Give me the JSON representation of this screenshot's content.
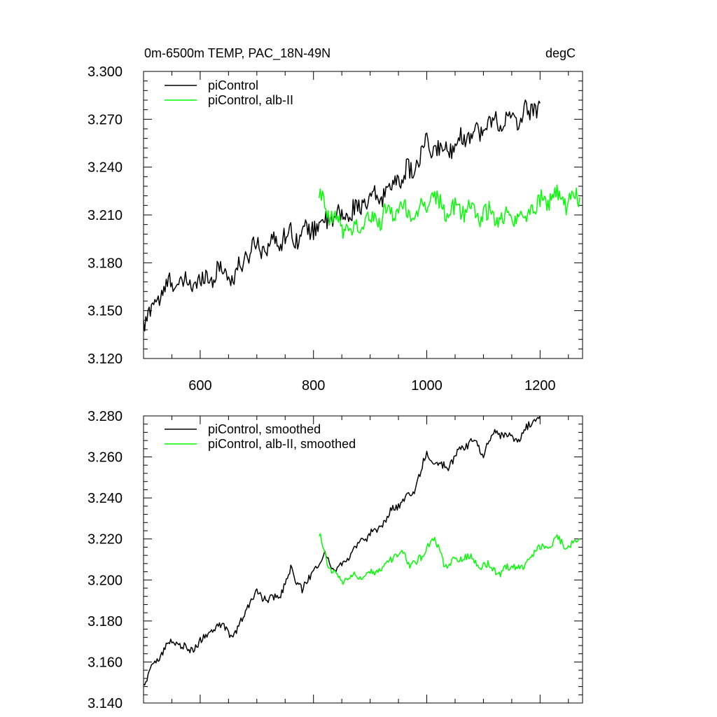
{
  "chart_data": [
    {
      "type": "line",
      "title": "0m-6500m TEMP, PAC_18N-49N",
      "units": "degC",
      "xlim": [
        500,
        1275
      ],
      "ylim": [
        3.12,
        3.3
      ],
      "xticks": [
        600,
        800,
        1000,
        1200
      ],
      "xtick_labels": [
        "600",
        "800",
        "1000",
        "1200"
      ],
      "yticks": [
        3.12,
        3.15,
        3.18,
        3.21,
        3.24,
        3.27,
        3.3
      ],
      "ytick_labels": [
        "3.120",
        "3.150",
        "3.180",
        "3.210",
        "3.240",
        "3.270",
        "3.300"
      ],
      "legend": [
        "piControl",
        "piControl, alb-II"
      ],
      "series": [
        {
          "name": "piControl",
          "color": "#000000",
          "x": [
            500,
            520,
            540,
            560,
            580,
            600,
            620,
            640,
            660,
            680,
            700,
            720,
            740,
            760,
            780,
            800,
            820,
            840,
            860,
            880,
            900,
            920,
            940,
            960,
            980,
            1000,
            1020,
            1040,
            1060,
            1080,
            1100,
            1120,
            1140,
            1160,
            1180,
            1200
          ],
          "values": [
            3.142,
            3.155,
            3.165,
            3.168,
            3.166,
            3.169,
            3.172,
            3.176,
            3.17,
            3.184,
            3.192,
            3.19,
            3.195,
            3.198,
            3.197,
            3.203,
            3.206,
            3.208,
            3.21,
            3.215,
            3.219,
            3.222,
            3.23,
            3.235,
            3.24,
            3.254,
            3.25,
            3.252,
            3.258,
            3.262,
            3.263,
            3.27,
            3.268,
            3.27,
            3.275,
            3.28
          ]
        },
        {
          "name": "piControl, alb-II",
          "color": "#00ff00",
          "x": [
            810,
            830,
            850,
            870,
            890,
            910,
            930,
            950,
            970,
            990,
            1010,
            1030,
            1050,
            1070,
            1090,
            1110,
            1130,
            1150,
            1170,
            1190,
            1210,
            1230,
            1250,
            1270
          ],
          "values": [
            3.222,
            3.208,
            3.203,
            3.2,
            3.206,
            3.207,
            3.21,
            3.215,
            3.211,
            3.213,
            3.222,
            3.213,
            3.212,
            3.215,
            3.211,
            3.21,
            3.207,
            3.209,
            3.208,
            3.216,
            3.22,
            3.222,
            3.218,
            3.221
          ]
        }
      ]
    },
    {
      "type": "line",
      "xlim": [
        500,
        1275
      ],
      "ylim": [
        3.14,
        3.28
      ],
      "xticks": [
        600,
        800,
        1000,
        1200
      ],
      "yticks": [
        3.14,
        3.16,
        3.18,
        3.2,
        3.22,
        3.24,
        3.26,
        3.28
      ],
      "ytick_labels": [
        "3.140",
        "3.160",
        "3.180",
        "3.200",
        "3.220",
        "3.240",
        "3.260",
        "3.280"
      ],
      "legend": [
        "piControl, smoothed",
        "piControl, alb-II, smoothed"
      ],
      "series": [
        {
          "name": "piControl, smoothed",
          "color": "#000000",
          "x": [
            500,
            520,
            540,
            560,
            580,
            600,
            620,
            640,
            660,
            680,
            700,
            720,
            740,
            760,
            780,
            800,
            820,
            840,
            860,
            880,
            900,
            920,
            940,
            960,
            980,
            1000,
            1020,
            1040,
            1060,
            1080,
            1100,
            1120,
            1140,
            1160,
            1180,
            1200
          ],
          "values": [
            3.149,
            3.16,
            3.168,
            3.17,
            3.165,
            3.17,
            3.175,
            3.178,
            3.172,
            3.185,
            3.194,
            3.19,
            3.192,
            3.205,
            3.195,
            3.205,
            3.212,
            3.205,
            3.21,
            3.218,
            3.222,
            3.226,
            3.235,
            3.238,
            3.245,
            3.262,
            3.255,
            3.256,
            3.264,
            3.268,
            3.262,
            3.273,
            3.27,
            3.268,
            3.275,
            3.28
          ]
        },
        {
          "name": "piControl, alb-II, smoothed",
          "color": "#00ff00",
          "x": [
            810,
            830,
            850,
            870,
            890,
            910,
            930,
            950,
            970,
            990,
            1010,
            1030,
            1050,
            1070,
            1090,
            1110,
            1130,
            1150,
            1170,
            1190,
            1210,
            1230,
            1250,
            1270
          ],
          "values": [
            3.222,
            3.205,
            3.2,
            3.202,
            3.203,
            3.204,
            3.208,
            3.214,
            3.208,
            3.21,
            3.222,
            3.208,
            3.209,
            3.212,
            3.208,
            3.207,
            3.203,
            3.207,
            3.206,
            3.214,
            3.216,
            3.22,
            3.216,
            3.22
          ]
        }
      ]
    }
  ]
}
